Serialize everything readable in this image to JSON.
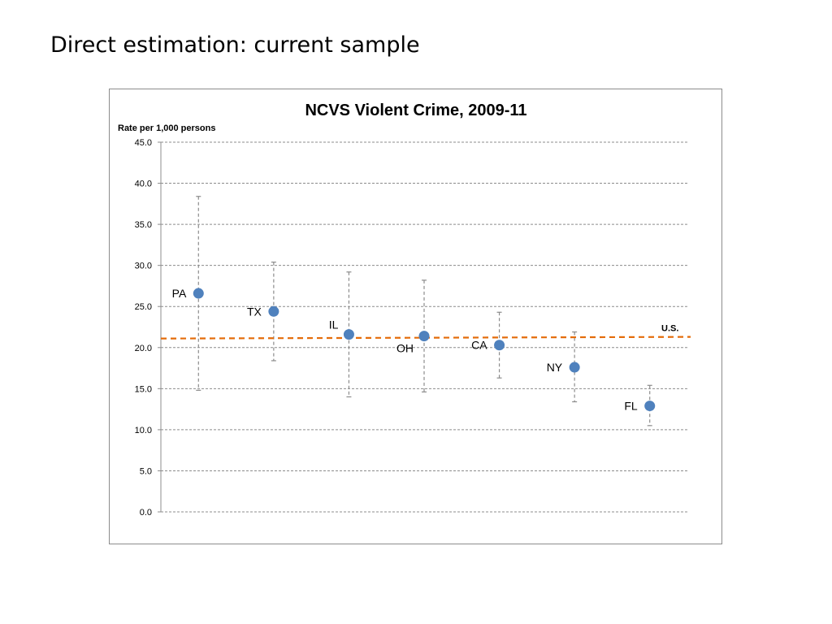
{
  "slide": {
    "title": "Direct estimation: current sample"
  },
  "colors": {
    "point": "#4f81bd",
    "reference_line": "#e46c0a",
    "gridline": "#8c8c8c",
    "error_bar": "#8c8c8c",
    "frame": "#8c8c8c"
  },
  "chart_data": {
    "type": "scatter",
    "title": "NCVS Violent Crime, 2009-11",
    "xlabel": "",
    "ylabel": "Rate per 1,000 persons",
    "ylim": [
      0,
      45
    ],
    "y_ticks": [
      "0.0",
      "5.0",
      "10.0",
      "15.0",
      "20.0",
      "25.0",
      "30.0",
      "35.0",
      "40.0",
      "45.0"
    ],
    "grid": "horizontal dashed",
    "points": [
      {
        "label": "PA",
        "y": 26.6,
        "lower": 14.8,
        "upper": 38.4,
        "label_side": "left"
      },
      {
        "label": "TX",
        "y": 24.4,
        "lower": 18.4,
        "upper": 30.4,
        "label_side": "left"
      },
      {
        "label": "IL",
        "y": 21.6,
        "lower": 14.0,
        "upper": 29.2,
        "label_side": "upper-left"
      },
      {
        "label": "OH",
        "y": 21.4,
        "lower": 14.6,
        "upper": 28.2,
        "label_side": "lower-left"
      },
      {
        "label": "CA",
        "y": 20.3,
        "lower": 16.3,
        "upper": 24.3,
        "label_side": "left"
      },
      {
        "label": "NY",
        "y": 17.6,
        "lower": 13.4,
        "upper": 21.9,
        "label_side": "left"
      },
      {
        "label": "FL",
        "y": 12.9,
        "lower": 10.5,
        "upper": 15.4,
        "label_side": "left"
      }
    ],
    "reference_line": {
      "label": "U.S.",
      "y_start": 21.1,
      "y_end": 21.3,
      "style": "dashed"
    }
  }
}
